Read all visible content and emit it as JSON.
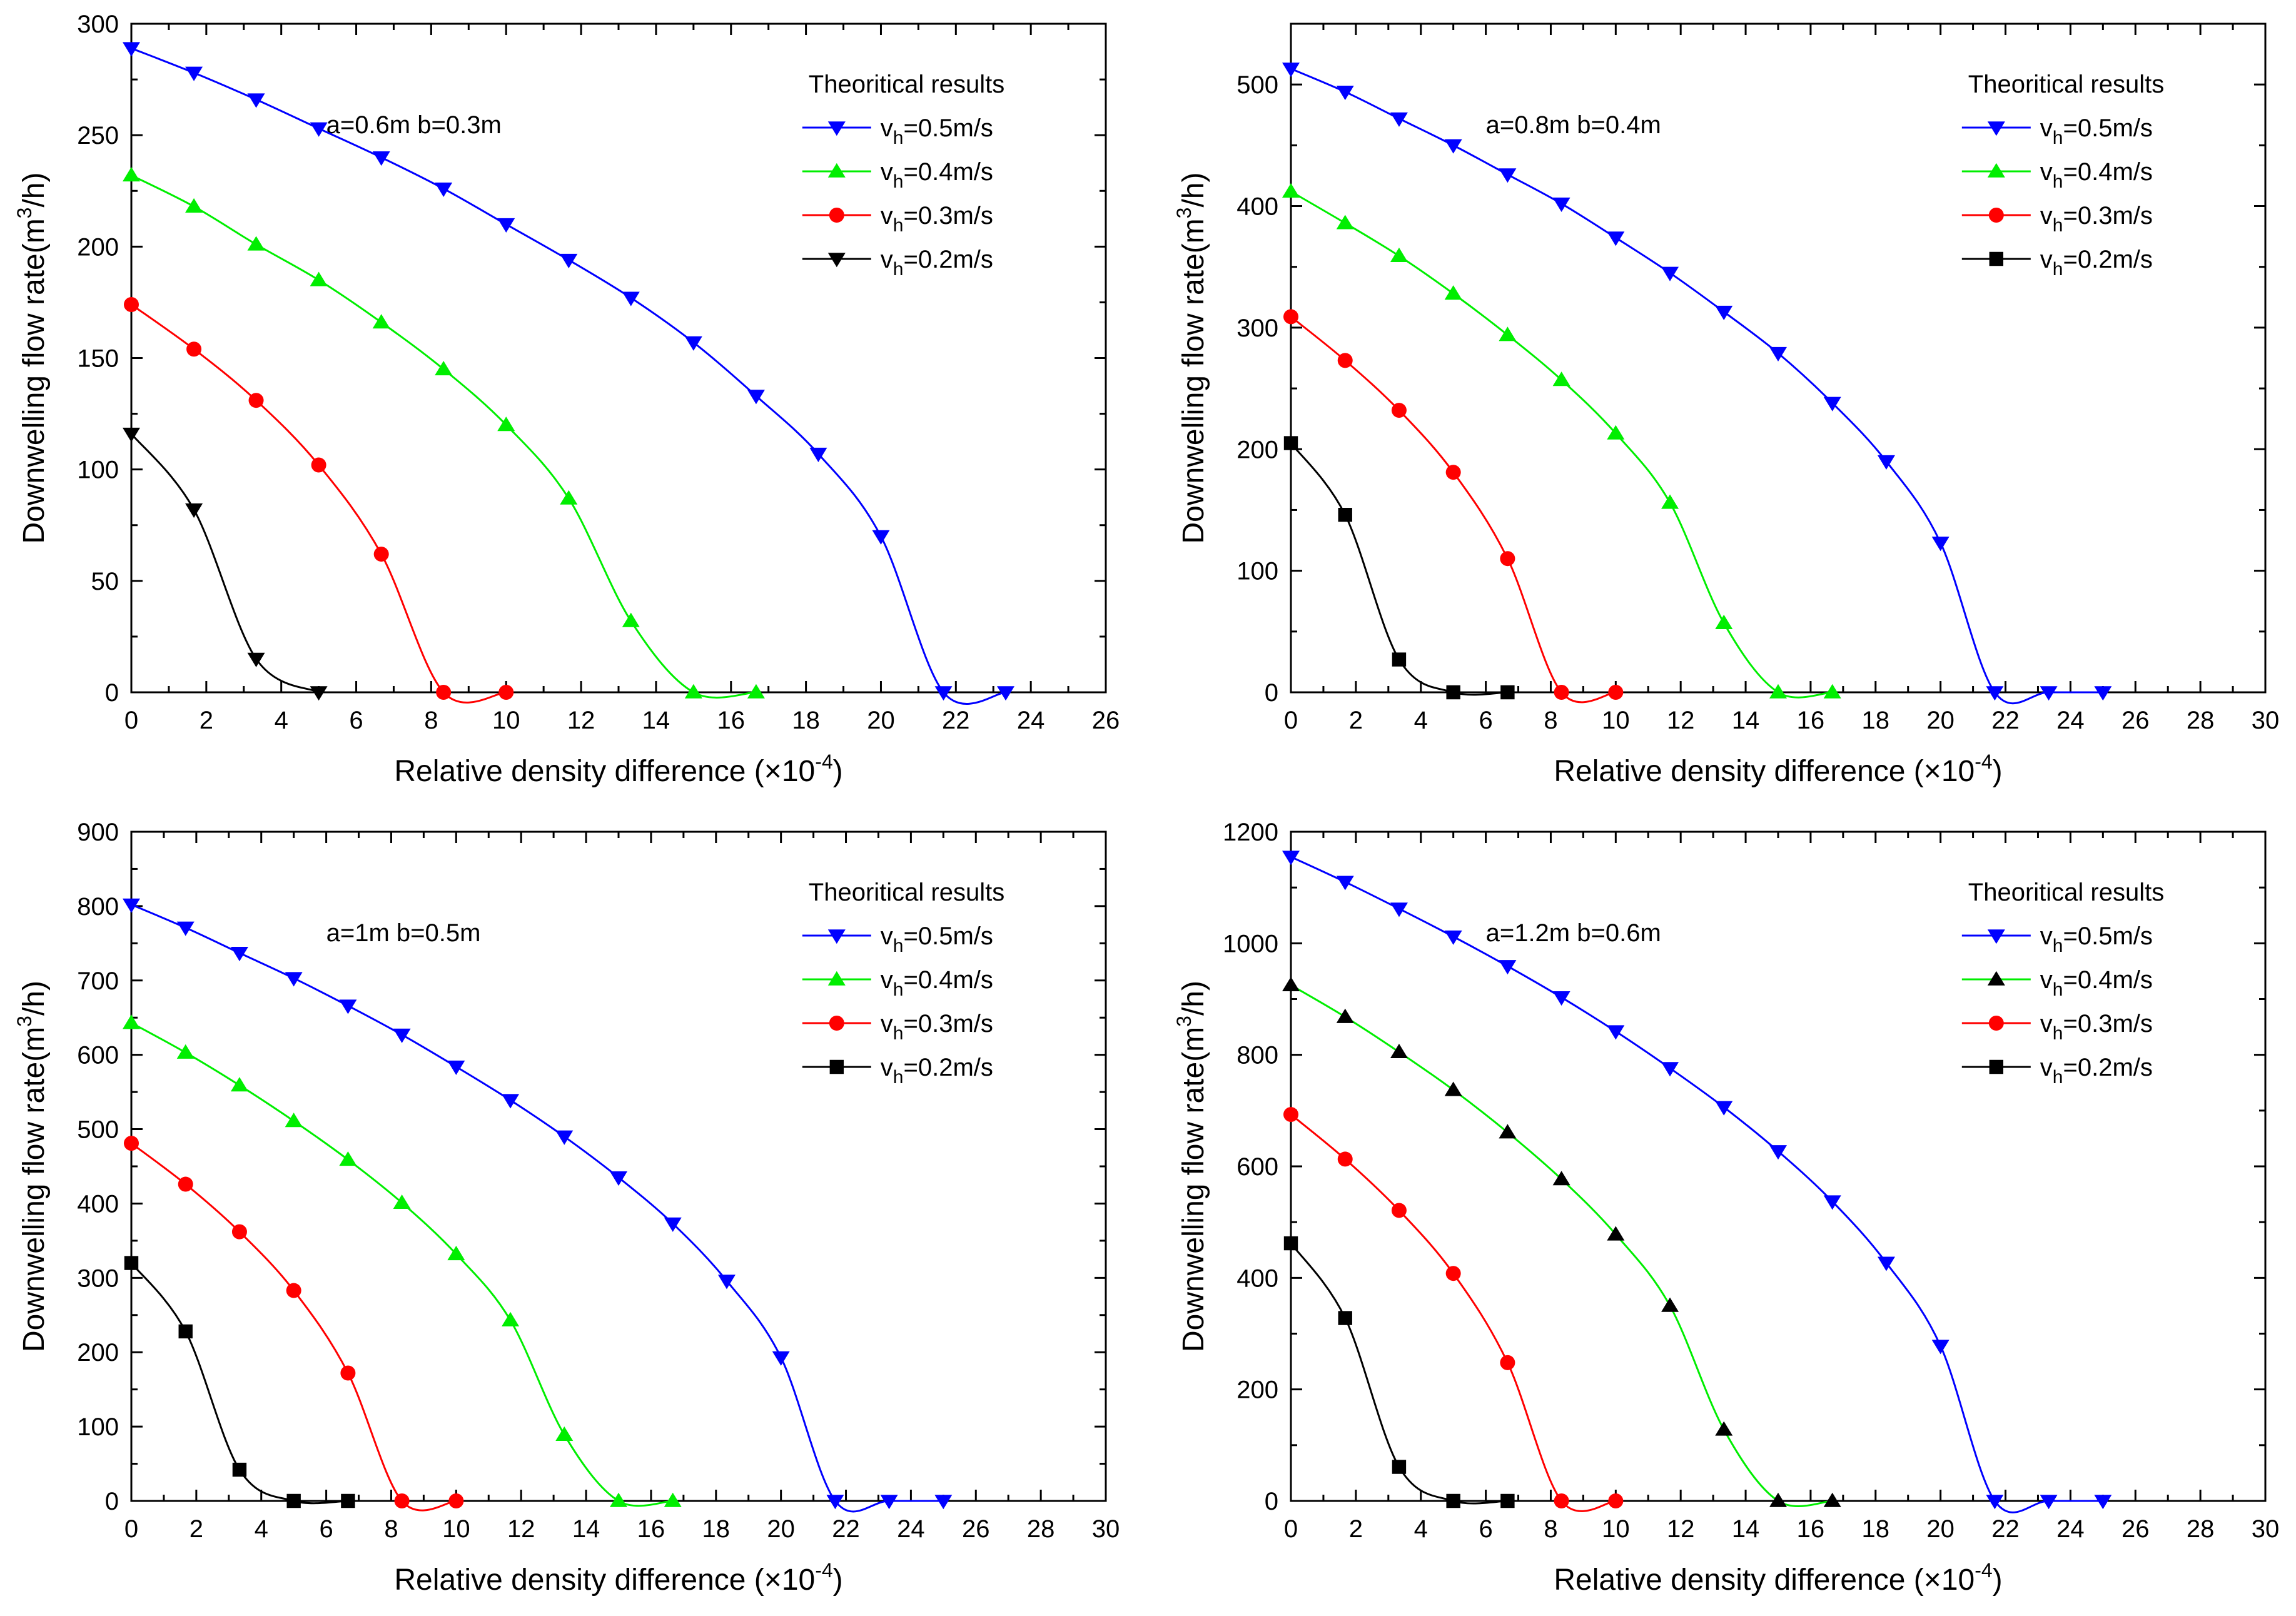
{
  "chart_data": [
    {
      "type": "line",
      "annotation": "a=0.6m b=0.3m",
      "xlabel": "Relative density difference (×10",
      "xlabel_exp": "-4",
      "xlabel_end": ")",
      "ylabel": "Downwelling flow rate(m",
      "ylabel_exp": "3",
      "ylabel_end": "/h)",
      "xlim": [
        0,
        26
      ],
      "ylim": [
        0,
        300
      ],
      "xticks": [
        0,
        2,
        4,
        6,
        8,
        10,
        12,
        14,
        16,
        18,
        20,
        22,
        24,
        26
      ],
      "yticks": [
        0,
        50,
        100,
        150,
        200,
        250,
        300
      ],
      "legend_title": "Theoritical results",
      "legend_position": "top-right",
      "series": [
        {
          "name": "v",
          "sub": "h",
          "label_rest": "=0.5m/s",
          "color": "#0000ff",
          "marker": "tri-down",
          "x": [
            0,
            1.67,
            3.33,
            5,
            6.67,
            8.33,
            10,
            11.67,
            13.33,
            15,
            16.67,
            18.33,
            20,
            21.67,
            23.33
          ],
          "y": [
            289,
            278,
            266,
            253,
            240,
            226,
            210,
            194,
            177,
            157,
            133,
            107,
            70,
            0,
            0
          ]
        },
        {
          "name": "v",
          "sub": "h",
          "label_rest": "=0.4m/s",
          "color": "#00ee00",
          "marker": "tri-up",
          "x": [
            0,
            1.67,
            3.33,
            5,
            6.67,
            8.33,
            10,
            11.67,
            13.33,
            15,
            16.67
          ],
          "y": [
            232,
            218,
            201,
            185,
            166,
            145,
            120,
            87,
            32,
            0,
            0
          ]
        },
        {
          "name": "v",
          "sub": "h",
          "label_rest": "=0.3m/s",
          "color": "#ff0000",
          "marker": "circle",
          "x": [
            0,
            1.67,
            3.33,
            5,
            6.67,
            8.33,
            10
          ],
          "y": [
            174,
            154,
            131,
            102,
            62,
            0,
            0
          ]
        },
        {
          "name": "v",
          "sub": "h",
          "label_rest": "=0.2m/s",
          "color": "#000000",
          "marker": "tri-down",
          "x": [
            0,
            1.67,
            3.33,
            5
          ],
          "y": [
            116,
            82,
            15,
            0
          ]
        }
      ]
    },
    {
      "type": "line",
      "annotation": "a=0.8m b=0.4m",
      "xlabel": "Relative density difference (×10",
      "xlabel_exp": "-4",
      "xlabel_end": ")",
      "ylabel": "Downwelling flow rate(m",
      "ylabel_exp": "3",
      "ylabel_end": "/h)",
      "xlim": [
        0,
        30
      ],
      "ylim": [
        0,
        550
      ],
      "xticks": [
        0,
        2,
        4,
        6,
        8,
        10,
        12,
        14,
        16,
        18,
        20,
        22,
        24,
        26,
        28,
        30
      ],
      "yticks": [
        0,
        100,
        200,
        300,
        400,
        500
      ],
      "legend_title": "Theoritical results",
      "legend_position": "top-right",
      "series": [
        {
          "name": "v",
          "sub": "h",
          "label_rest": "=0.5m/s",
          "color": "#0000ff",
          "marker": "tri-down",
          "x": [
            0,
            1.67,
            3.33,
            5,
            6.67,
            8.33,
            10,
            11.67,
            13.33,
            15,
            16.67,
            18.33,
            20,
            21.67,
            23.33,
            25
          ],
          "y": [
            513,
            494,
            472,
            450,
            426,
            402,
            374,
            345,
            313,
            279,
            238,
            190,
            123,
            0,
            0,
            0
          ]
        },
        {
          "name": "v",
          "sub": "h",
          "label_rest": "=0.4m/s",
          "color": "#00ee00",
          "marker": "tri-up",
          "x": [
            0,
            1.67,
            3.33,
            5,
            6.67,
            8.33,
            10,
            11.67,
            13.33,
            15,
            16.67
          ],
          "y": [
            412,
            386,
            359,
            328,
            294,
            257,
            213,
            156,
            57,
            0,
            0
          ]
        },
        {
          "name": "v",
          "sub": "h",
          "label_rest": "=0.3m/s",
          "color": "#ff0000",
          "marker": "circle",
          "x": [
            0,
            1.67,
            3.33,
            5,
            6.67,
            8.33,
            10
          ],
          "y": [
            309,
            273,
            232,
            181,
            110,
            0,
            0
          ]
        },
        {
          "name": "v",
          "sub": "h",
          "label_rest": "=0.2m/s",
          "color": "#000000",
          "marker": "square",
          "x": [
            0,
            1.67,
            3.33,
            5,
            6.67
          ],
          "y": [
            205,
            146,
            27,
            0,
            0
          ]
        }
      ]
    },
    {
      "type": "line",
      "annotation": "a=1m b=0.5m",
      "xlabel": "Relative density difference (×10",
      "xlabel_exp": "-4",
      "xlabel_end": ")",
      "ylabel": "Downwelling flow rate(m",
      "ylabel_exp": "3",
      "ylabel_end": "/h)",
      "xlim": [
        0,
        30
      ],
      "ylim": [
        0,
        900
      ],
      "xticks": [
        0,
        2,
        4,
        6,
        8,
        10,
        12,
        14,
        16,
        18,
        20,
        22,
        24,
        26,
        28,
        30
      ],
      "yticks": [
        0,
        100,
        200,
        300,
        400,
        500,
        600,
        700,
        800,
        900
      ],
      "legend_title": "Theoritical results",
      "legend_position": "top-right",
      "series": [
        {
          "name": "v",
          "sub": "h",
          "label_rest": "=0.5m/s",
          "color": "#0000ff",
          "marker": "tri-down",
          "x": [
            0,
            1.67,
            3.33,
            5,
            6.67,
            8.33,
            10,
            11.67,
            13.33,
            15,
            16.67,
            18.33,
            20,
            21.67,
            23.33,
            25
          ],
          "y": [
            802,
            771,
            737,
            703,
            666,
            627,
            584,
            539,
            490,
            435,
            373,
            296,
            193,
            0,
            0,
            0
          ]
        },
        {
          "name": "v",
          "sub": "h",
          "label_rest": "=0.4m/s",
          "color": "#00ee00",
          "marker": "tri-up",
          "x": [
            0,
            1.67,
            3.33,
            5,
            6.67,
            8.33,
            10,
            11.67,
            13.33,
            15,
            16.67
          ],
          "y": [
            643,
            603,
            559,
            511,
            459,
            401,
            332,
            243,
            89,
            0,
            0
          ]
        },
        {
          "name": "v",
          "sub": "h",
          "label_rest": "=0.3m/s",
          "color": "#ff0000",
          "marker": "circle",
          "x": [
            0,
            1.67,
            3.33,
            5,
            6.67,
            8.33,
            10
          ],
          "y": [
            481,
            426,
            362,
            283,
            172,
            0,
            0
          ]
        },
        {
          "name": "v",
          "sub": "h",
          "label_rest": "=0.2m/s",
          "color": "#000000",
          "marker": "square",
          "x": [
            0,
            1.67,
            3.33,
            5,
            6.67
          ],
          "y": [
            320,
            228,
            42,
            0,
            0
          ]
        }
      ]
    },
    {
      "type": "line",
      "annotation": "a=1.2m b=0.6m",
      "xlabel": "Relative density difference (×10",
      "xlabel_exp": "-4",
      "xlabel_end": ")",
      "ylabel": "Downwelling flow rate(m",
      "ylabel_exp": "3",
      "ylabel_end": "/h)",
      "xlim": [
        0,
        30
      ],
      "ylim": [
        0,
        1200
      ],
      "xticks": [
        0,
        2,
        4,
        6,
        8,
        10,
        12,
        14,
        16,
        18,
        20,
        22,
        24,
        26,
        28,
        30
      ],
      "yticks": [
        0,
        200,
        400,
        600,
        800,
        1000,
        1200
      ],
      "legend_title": "Theoritical results",
      "legend_position": "top-right",
      "series": [
        {
          "name": "v",
          "sub": "h",
          "label_rest": "=0.5m/s",
          "color": "#0000ff",
          "marker": "tri-down",
          "x": [
            0,
            1.67,
            3.33,
            5,
            6.67,
            8.33,
            10,
            11.67,
            13.33,
            15,
            16.67,
            18.33,
            20,
            21.67,
            23.33,
            25
          ],
          "y": [
            1155,
            1110,
            1062,
            1012,
            959,
            903,
            842,
            776,
            706,
            627,
            537,
            427,
            278,
            0,
            0,
            0
          ]
        },
        {
          "name": "v",
          "sub": "h",
          "label_rest": "=0.4m/s",
          "color": "#00ee00",
          "marker": "tri-up",
          "marker_color": "#000000",
          "x": [
            0,
            1.67,
            3.33,
            5,
            6.67,
            8.33,
            10,
            11.67,
            13.33,
            15,
            16.67
          ],
          "y": [
            925,
            868,
            805,
            737,
            661,
            577,
            478,
            350,
            128,
            0,
            0
          ]
        },
        {
          "name": "v",
          "sub": "h",
          "label_rest": "=0.3m/s",
          "color": "#ff0000",
          "marker": "circle",
          "x": [
            0,
            1.67,
            3.33,
            5,
            6.67,
            8.33,
            10
          ],
          "y": [
            693,
            613,
            521,
            408,
            248,
            0,
            0
          ]
        },
        {
          "name": "v",
          "sub": "h",
          "label_rest": "=0.2m/s",
          "color": "#000000",
          "marker": "square",
          "x": [
            0,
            1.67,
            3.33,
            5,
            6.67
          ],
          "y": [
            462,
            328,
            61,
            0,
            0
          ]
        }
      ]
    }
  ]
}
